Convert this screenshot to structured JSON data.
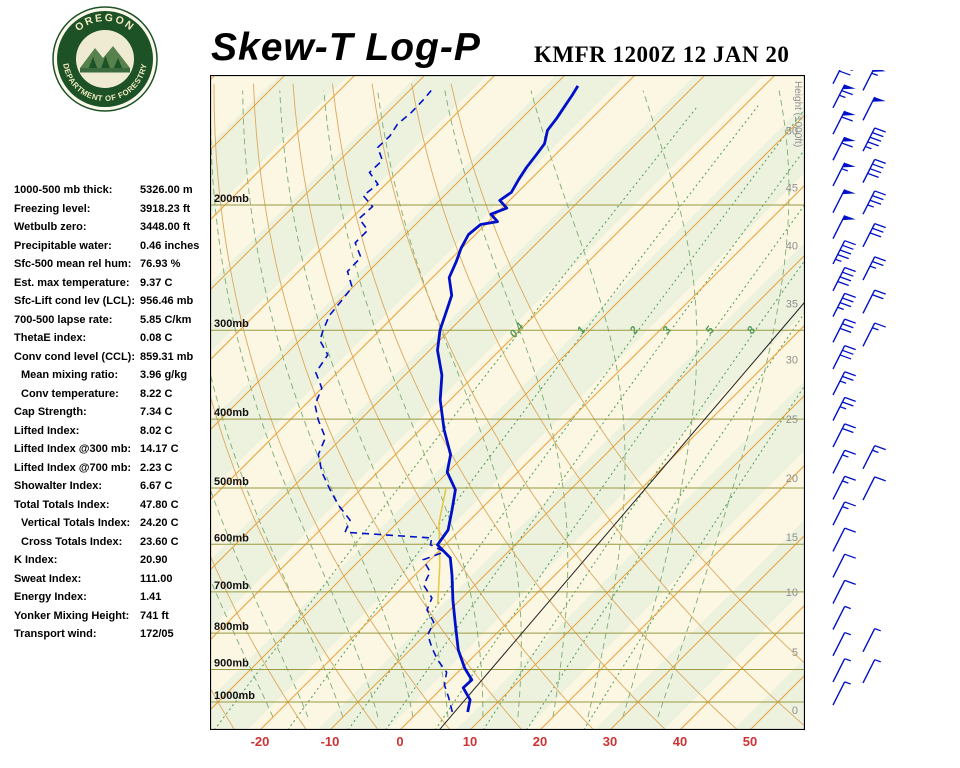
{
  "header": {
    "title": "Skew-T Log-P",
    "station": "KMFR 1200Z 12 JAN 20",
    "logo_text_top": "OREGON",
    "logo_text_bottom": "DEPARTMENT OF FORESTRY"
  },
  "indices": [
    {
      "label": "1000-500 mb thick:",
      "value": "5326.00 m",
      "indent": false
    },
    {
      "label": "Freezing level:",
      "value": "3918.23 ft",
      "indent": false
    },
    {
      "label": "Wetbulb zero:",
      "value": "3448.00 ft",
      "indent": false
    },
    {
      "label": "Precipitable water:",
      "value": "0.46 inches",
      "indent": false
    },
    {
      "label": "Sfc-500 mean rel hum:",
      "value": "76.93 %",
      "indent": false
    },
    {
      "label": "Est. max temperature:",
      "value": "9.37 C",
      "indent": false
    },
    {
      "label": "Sfc-Lift cond lev (LCL):",
      "value": "956.46 mb",
      "indent": false
    },
    {
      "label": "700-500 lapse rate:",
      "value": "5.85 C/km",
      "indent": false
    },
    {
      "label": "ThetaE index:",
      "value": "0.08 C",
      "indent": false
    },
    {
      "label": "Conv cond level (CCL):",
      "value": "859.31 mb",
      "indent": false
    },
    {
      "label": "Mean mixing ratio:",
      "value": "3.96 g/kg",
      "indent": true
    },
    {
      "label": "Conv temperature:",
      "value": "8.22 C",
      "indent": true
    },
    {
      "label": "Cap Strength:",
      "value": "7.34 C",
      "indent": false
    },
    {
      "label": "Lifted Index:",
      "value": "8.02 C",
      "indent": false
    },
    {
      "label": "Lifted Index @300 mb:",
      "value": "14.17 C",
      "indent": false
    },
    {
      "label": "Lifted Index @700 mb:",
      "value": "2.23 C",
      "indent": false
    },
    {
      "label": "Showalter Index:",
      "value": "6.67 C",
      "indent": false
    },
    {
      "label": "Total Totals Index:",
      "value": "47.80 C",
      "indent": false
    },
    {
      "label": "Vertical Totals Index:",
      "value": "24.20 C",
      "indent": true
    },
    {
      "label": "Cross Totals Index:",
      "value": "23.60 C",
      "indent": true
    },
    {
      "label": "K Index:",
      "value": "20.90",
      "indent": false
    },
    {
      "label": "Sweat Index:",
      "value": "111.00",
      "indent": false
    },
    {
      "label": "Energy Index:",
      "value": "1.41",
      "indent": false
    },
    {
      "label": "Yonker Mixing Height:",
      "value": "741 ft",
      "indent": false
    },
    {
      "label": "Transport wind:",
      "value": "172/05",
      "indent": false
    }
  ],
  "axes": {
    "pressure_labels": [
      {
        "label": "200mb",
        "p": 200
      },
      {
        "label": "300mb",
        "p": 300
      },
      {
        "label": "400mb",
        "p": 400
      },
      {
        "label": "500mb",
        "p": 500
      },
      {
        "label": "600mb",
        "p": 600
      },
      {
        "label": "700mb",
        "p": 700
      },
      {
        "label": "800mb",
        "p": 800
      },
      {
        "label": "900mb",
        "p": 900
      },
      {
        "label": "1000mb",
        "p": 1000
      }
    ],
    "temp_ticks": [
      -20,
      -10,
      0,
      10,
      20,
      30,
      40,
      50
    ],
    "height_axis_title": "Height (1000ft)",
    "height_ticks": [
      {
        "label": "50",
        "p": 157
      },
      {
        "label": "45",
        "p": 189
      },
      {
        "label": "40",
        "p": 228
      },
      {
        "label": "35",
        "p": 275
      },
      {
        "label": "30",
        "p": 330
      },
      {
        "label": "25",
        "p": 400
      },
      {
        "label": "20",
        "p": 484
      },
      {
        "label": "15",
        "p": 586
      },
      {
        "label": "10",
        "p": 700
      },
      {
        "label": "5",
        "p": 850
      },
      {
        "label": "0",
        "p": 1026
      }
    ],
    "mixing_labels": [
      {
        "text": "0.4",
        "r": 0.4
      },
      {
        "text": "1",
        "r": 1
      },
      {
        "text": "2",
        "r": 2
      },
      {
        "text": "3",
        "r": 3
      },
      {
        "text": "5",
        "r": 5
      },
      {
        "text": "8",
        "r": 8
      }
    ]
  },
  "chart_data": {
    "type": "skewt-log-p",
    "pressure_range_mb": [
      131,
      1095
    ],
    "temperature_profile_pT": [
      [
        1033,
        7.1
      ],
      [
        993,
        5.7
      ],
      [
        955,
        3.0
      ],
      [
        931,
        3.1
      ],
      [
        896,
        0.4
      ],
      [
        845,
        -3.1
      ],
      [
        779,
        -7.1
      ],
      [
        719,
        -11.0
      ],
      [
        663,
        -14.7
      ],
      [
        627,
        -17.4
      ],
      [
        601,
        -21.1
      ],
      [
        573,
        -21.7
      ],
      [
        537,
        -24.0
      ],
      [
        503,
        -26.4
      ],
      [
        475,
        -30.1
      ],
      [
        449,
        -32.1
      ],
      [
        414,
        -36.6
      ],
      [
        376,
        -41.4
      ],
      [
        347,
        -44.7
      ],
      [
        320,
        -48.9
      ],
      [
        300,
        -51.4
      ],
      [
        283,
        -53.1
      ],
      [
        268,
        -54.7
      ],
      [
        253,
        -57.6
      ],
      [
        240,
        -58.9
      ],
      [
        230,
        -60.1
      ],
      [
        220,
        -61.0
      ],
      [
        213,
        -60.7
      ],
      [
        211,
        -58.7
      ],
      [
        206,
        -60.7
      ],
      [
        202,
        -59.3
      ],
      [
        197,
        -61.4
      ],
      [
        192,
        -60.9
      ],
      [
        184,
        -61.7
      ],
      [
        177,
        -62.3
      ],
      [
        170,
        -62.7
      ],
      [
        164,
        -63.1
      ],
      [
        157,
        -64.6
      ],
      [
        151,
        -65.0
      ],
      [
        145,
        -65.6
      ],
      [
        140,
        -66.1
      ],
      [
        136,
        -66.6
      ]
    ],
    "dewpoint_profile_pT": [
      [
        1033,
        4.9
      ],
      [
        987,
        2.4
      ],
      [
        946,
        -0.1
      ],
      [
        908,
        -1.6
      ],
      [
        873,
        -4.6
      ],
      [
        840,
        -7.1
      ],
      [
        805,
        -9.6
      ],
      [
        772,
        -10.6
      ],
      [
        742,
        -13.3
      ],
      [
        714,
        -14.3
      ],
      [
        685,
        -17.3
      ],
      [
        656,
        -18.3
      ],
      [
        631,
        -21.0
      ],
      [
        615,
        -19.1
      ],
      [
        601,
        -22.1
      ],
      [
        588,
        -22.9
      ],
      [
        577,
        -36.1
      ],
      [
        555,
        -37.1
      ],
      [
        528,
        -41.0
      ],
      [
        503,
        -44.3
      ],
      [
        475,
        -48.0
      ],
      [
        449,
        -51.0
      ],
      [
        425,
        -52.4
      ],
      [
        401,
        -56.0
      ],
      [
        382,
        -58.6
      ],
      [
        362,
        -60.0
      ],
      [
        344,
        -63.1
      ],
      [
        325,
        -63.9
      ],
      [
        310,
        -67.1
      ],
      [
        300,
        -68.1
      ],
      [
        286,
        -69.3
      ],
      [
        272,
        -69.7
      ],
      [
        261,
        -70.1
      ],
      [
        248,
        -73.0
      ],
      [
        237,
        -73.1
      ],
      [
        226,
        -76.0
      ],
      [
        217,
        -76.0
      ],
      [
        209,
        -78.9
      ],
      [
        201,
        -78.7
      ],
      [
        194,
        -81.6
      ],
      [
        187,
        -81.1
      ],
      [
        180,
        -84.0
      ],
      [
        173,
        -83.9
      ],
      [
        166,
        -86.4
      ],
      [
        160,
        -86.3
      ],
      [
        154,
        -86.9
      ],
      [
        148,
        -86.6
      ],
      [
        142,
        -86.7
      ],
      [
        138,
        -86.9
      ]
    ],
    "parcel_path_pT": [
      [
        730,
        -12.5
      ],
      [
        640,
        -18.0
      ],
      [
        560,
        -24.0
      ],
      [
        500,
        -28.0
      ]
    ],
    "reference_line_pT": [
      [
        1095,
        5.6
      ],
      [
        274,
        -3.3
      ]
    ],
    "wind_barbs_primary": [
      {
        "p": 135,
        "spd": 70
      },
      {
        "p": 146,
        "spd": 65
      },
      {
        "p": 159,
        "spd": 60
      },
      {
        "p": 173,
        "spd": 60
      },
      {
        "p": 188,
        "spd": 55
      },
      {
        "p": 205,
        "spd": 50
      },
      {
        "p": 223,
        "spd": 50
      },
      {
        "p": 242,
        "spd": 45
      },
      {
        "p": 264,
        "spd": 40
      },
      {
        "p": 287,
        "spd": 35
      },
      {
        "p": 312,
        "spd": 30
      },
      {
        "p": 340,
        "spd": 30
      },
      {
        "p": 370,
        "spd": 25
      },
      {
        "p": 402,
        "spd": 25
      },
      {
        "p": 438,
        "spd": 20
      },
      {
        "p": 477,
        "spd": 15
      },
      {
        "p": 519,
        "spd": 15
      },
      {
        "p": 564,
        "spd": 15
      },
      {
        "p": 614,
        "spd": 10
      },
      {
        "p": 668,
        "spd": 10
      },
      {
        "p": 727,
        "spd": 10
      },
      {
        "p": 791,
        "spd": 5
      },
      {
        "p": 861,
        "spd": 5
      },
      {
        "p": 937,
        "spd": 5
      },
      {
        "p": 1010,
        "spd": 5
      }
    ],
    "wind_barbs_secondary": [
      {
        "p": 138,
        "spd": 55
      },
      {
        "p": 152,
        "spd": 50
      },
      {
        "p": 168,
        "spd": 45
      },
      {
        "p": 186,
        "spd": 40
      },
      {
        "p": 206,
        "spd": 35
      },
      {
        "p": 229,
        "spd": 30
      },
      {
        "p": 255,
        "spd": 25
      },
      {
        "p": 284,
        "spd": 20
      },
      {
        "p": 316,
        "spd": 15
      },
      {
        "p": 470,
        "spd": 15
      },
      {
        "p": 520,
        "spd": 10
      },
      {
        "p": 850,
        "spd": 5
      },
      {
        "p": 940,
        "spd": 5
      }
    ],
    "isotherm_range_c": [
      -120,
      60
    ],
    "isotherm_step_c": 10,
    "dry_adiabats_theta_c": [
      -40,
      -30,
      -20,
      -10,
      0,
      10,
      20,
      30,
      40,
      50,
      60
    ],
    "moist_adiabats_t0_c": [
      -20,
      -15,
      -10,
      -5,
      0,
      5,
      10,
      15,
      20,
      25,
      30,
      35
    ],
    "mixing_ratio_lines_gkg": [
      0.4,
      1,
      2,
      3,
      5,
      8,
      12,
      20
    ]
  },
  "colors": {
    "isotherm": "#E8A23C",
    "dry_adiabat": "#DBA85C",
    "moist_adiabat": "#7FAC72",
    "mixing_ratio": "#4E9B57",
    "isobar": "#9A9A40",
    "trace": "#0010C8",
    "axis_red": "#CC3333",
    "height_gray": "#8F8F8F",
    "barb_blue": "#0010C8",
    "parcel_yellow": "#E6C84B",
    "ref_black": "#222222",
    "logo_green": "#1C5226",
    "logo_cream": "#F2E9C0"
  }
}
